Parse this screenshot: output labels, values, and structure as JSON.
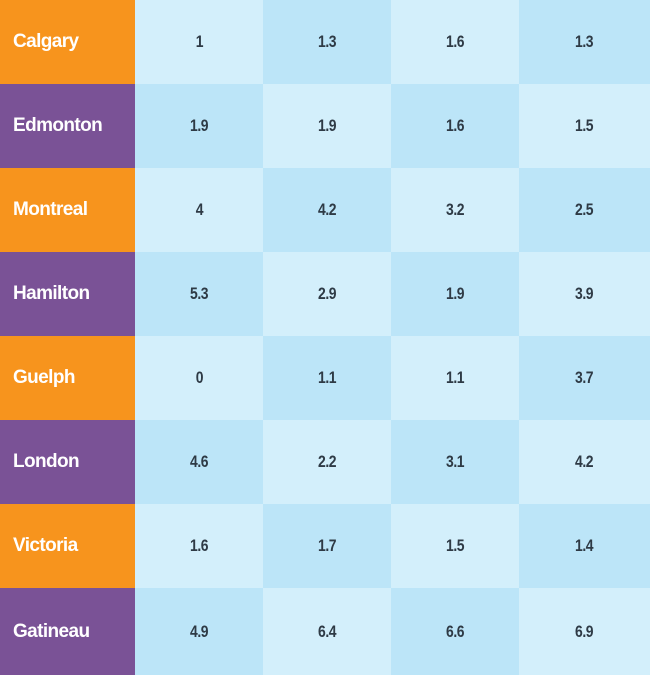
{
  "colors": {
    "orange": "#F7941D",
    "purple": "#7A5296",
    "light_blue": "#D3EFFB",
    "mid_blue": "#BCE5F8"
  },
  "chart_data": {
    "type": "table",
    "rows": [
      {
        "city": "Calgary",
        "values": [
          "1",
          "1.3",
          "1.6",
          "1.3"
        ]
      },
      {
        "city": "Edmonton",
        "values": [
          "1.9",
          "1.9",
          "1.6",
          "1.5"
        ]
      },
      {
        "city": "Montreal",
        "values": [
          "4",
          "4.2",
          "3.2",
          "2.5"
        ]
      },
      {
        "city": "Hamilton",
        "values": [
          "5.3",
          "2.9",
          "1.9",
          "3.9"
        ]
      },
      {
        "city": "Guelph",
        "values": [
          "0",
          "1.1",
          "1.1",
          "3.7"
        ]
      },
      {
        "city": "London",
        "values": [
          "4.6",
          "2.2",
          "3.1",
          "4.2"
        ]
      },
      {
        "city": "Victoria",
        "values": [
          "1.6",
          "1.7",
          "1.5",
          "1.4"
        ]
      },
      {
        "city": "Gatineau",
        "values": [
          "4.9",
          "6.4",
          "6.6",
          "6.9"
        ]
      }
    ]
  }
}
